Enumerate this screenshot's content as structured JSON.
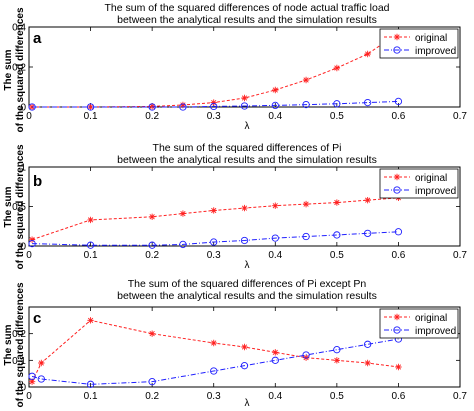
{
  "chart_data": [
    {
      "type": "line",
      "panel_label": "a",
      "title": "The sum of the squared differences of node actual traffic load",
      "subtitle": "between the analytical results and the simulation results",
      "xlabel": "λ",
      "ylabel": "The sum of the squared differences",
      "xlim": [
        0,
        0.7
      ],
      "ylim": [
        0,
        0.4
      ],
      "xticks": [
        "0",
        "0.1",
        "0.2",
        "0.3",
        "0.4",
        "0.5",
        "0.6",
        "0.7"
      ],
      "yticks": [
        "0",
        "0.2",
        "0.4"
      ],
      "legend_position": "top-right",
      "x": [
        0.005,
        0.1,
        0.2,
        0.25,
        0.3,
        0.35,
        0.4,
        0.45,
        0.5,
        0.55,
        0.6
      ],
      "series": [
        {
          "name": "original",
          "color": "#ff2020",
          "marker": "star",
          "values": [
            0.0,
            0.0,
            0.003,
            0.01,
            0.022,
            0.045,
            0.085,
            0.135,
            0.195,
            0.265,
            0.37
          ]
        },
        {
          "name": "improved",
          "color": "#2020ff",
          "marker": "circle",
          "values": [
            0.0,
            0.0,
            0.0,
            0.0,
            0.003,
            0.005,
            0.008,
            0.012,
            0.016,
            0.022,
            0.028
          ]
        }
      ]
    },
    {
      "type": "line",
      "panel_label": "b",
      "title": "The sum of the squared differences of Pi",
      "subtitle": "between the analytical results and the simulation results",
      "xlabel": "λ",
      "ylabel": "The sum of the squared differences",
      "xlim": [
        0,
        0.7
      ],
      "ylim": [
        0,
        1
      ],
      "xticks": [
        "0",
        "0.1",
        "0.2",
        "0.3",
        "0.4",
        "0.5",
        "0.6",
        "0.7"
      ],
      "yticks": [
        "0",
        "0.5",
        "1"
      ],
      "legend_position": "top-right",
      "x": [
        0.005,
        0.1,
        0.2,
        0.25,
        0.3,
        0.35,
        0.4,
        0.45,
        0.5,
        0.55,
        0.6
      ],
      "series": [
        {
          "name": "original",
          "color": "#ff2020",
          "marker": "star",
          "values": [
            0.08,
            0.33,
            0.37,
            0.41,
            0.45,
            0.48,
            0.51,
            0.53,
            0.55,
            0.58,
            0.61
          ]
        },
        {
          "name": "improved",
          "color": "#2020ff",
          "marker": "circle",
          "values": [
            0.03,
            0.01,
            0.01,
            0.02,
            0.05,
            0.07,
            0.1,
            0.12,
            0.14,
            0.16,
            0.18
          ]
        }
      ]
    },
    {
      "type": "line",
      "panel_label": "c",
      "title": "The sum of the squared differences of Pi except Pn",
      "subtitle": "between the analytical results and the simulation results",
      "xlabel": "λ",
      "ylabel": "The sum of the squared differences",
      "xlim": [
        0,
        0.7
      ],
      "ylim": [
        0,
        0.3
      ],
      "xticks": [
        "0",
        "0.1",
        "0.2",
        "0.3",
        "0.4",
        "0.5",
        "0.6",
        "0.7"
      ],
      "yticks": [
        "0",
        "0.1",
        "0.2"
      ],
      "legend_position": "top-right",
      "x": [
        0.005,
        0.02,
        0.1,
        0.2,
        0.3,
        0.35,
        0.4,
        0.45,
        0.5,
        0.55,
        0.6
      ],
      "series": [
        {
          "name": "original",
          "color": "#ff2020",
          "marker": "star",
          "values": [
            0.02,
            0.09,
            0.25,
            0.2,
            0.165,
            0.15,
            0.13,
            0.11,
            0.1,
            0.09,
            0.075
          ]
        },
        {
          "name": "improved",
          "color": "#2020ff",
          "marker": "circle",
          "values": [
            0.04,
            0.03,
            0.01,
            0.02,
            0.06,
            0.08,
            0.1,
            0.12,
            0.14,
            0.16,
            0.18
          ]
        }
      ]
    }
  ]
}
